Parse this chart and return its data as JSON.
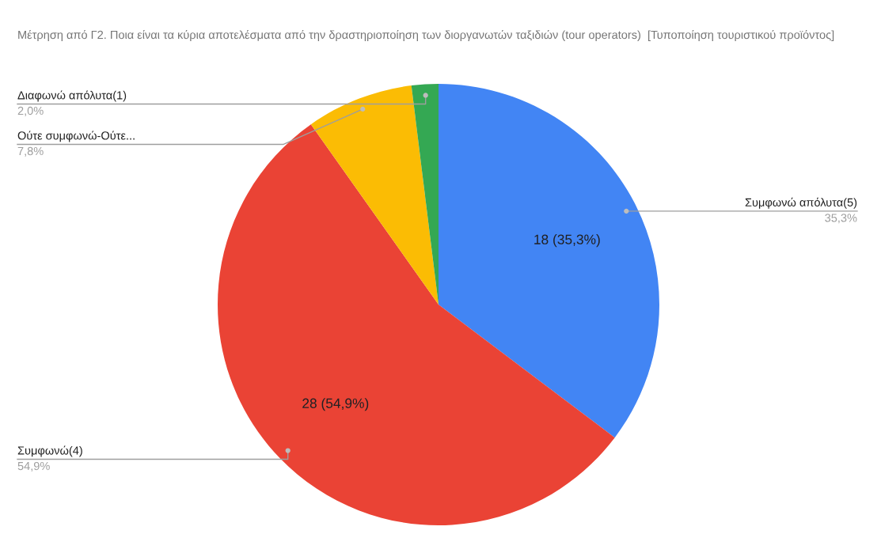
{
  "chart_data": {
    "type": "pie",
    "title": "Μέτρηση από Γ2. Ποια είναι τα κύρια αποτελέσματα από την δραστηριοποίηση των διοργανωτών ταξιδιών (tour operators)  [Τυποποίηση τουριστικού προϊόντος]",
    "categories": [
      "Συμφωνώ απόλυτα(5)",
      "Συμφωνώ(4)",
      "Ούτε συμφωνώ-Ούτε...",
      "Διαφωνώ απόλυτα(1)"
    ],
    "values": [
      18,
      28,
      4,
      1
    ],
    "colors": [
      "#4285f4",
      "#ea4335",
      "#fbbc04",
      "#34a853"
    ],
    "value_labels": [
      "18 (35,3%)",
      "28 (54,9%)",
      null,
      null
    ],
    "annotations": [
      {
        "text": "35,3%",
        "x": "Συμφωνώ απόλυτα(5)"
      },
      {
        "text": "54,9%",
        "x": "Συμφωνώ(4)"
      },
      {
        "text": "7,8%",
        "x": "Ούτε συμφωνώ-Ούτε..."
      },
      {
        "text": "2,0%",
        "x": "Διαφωνώ απόλυτα(1)"
      }
    ]
  }
}
